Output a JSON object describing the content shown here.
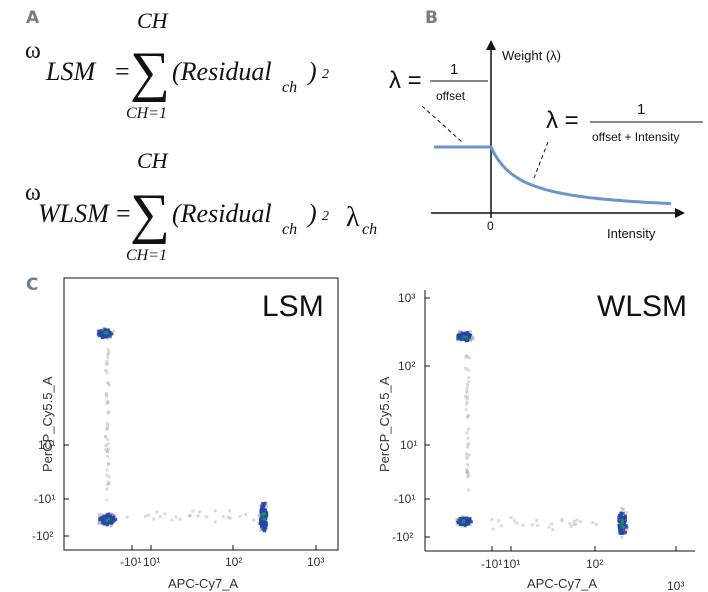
{
  "panels": {
    "a": "A",
    "b": "B",
    "c": "C"
  },
  "equations": {
    "sum_upper": "CH",
    "sum_lower": "CH=1",
    "omega": "ω",
    "lsm_sub": "LSM",
    "wlsm_sub": "WLSM",
    "equals": "=",
    "sigma": "∑",
    "residual_open": "(Residual",
    "ch_sub": "ch",
    "residual_close": ")",
    "squared": "2",
    "lambda": "λ",
    "lambda_ch_sub": "ch"
  },
  "weight_chart": {
    "y_axis_label": "Weight (λ)",
    "x_axis_label": "Intensity",
    "origin_label": "0",
    "formula_left": {
      "lhs": "λ =",
      "numerator": "1",
      "denominator": "offset"
    },
    "formula_right": {
      "lhs": "λ =",
      "numerator": "1",
      "denominator": "offset + Intensity"
    },
    "line_color": "#6a96c8"
  },
  "chart_data": [
    {
      "type": "line",
      "title": "",
      "xlabel": "Intensity",
      "ylabel": "Weight (λ)",
      "series": [
        {
          "name": "",
          "x": [
            -1.0,
            0.0,
            0.5,
            1.0,
            2.0,
            3.0,
            4.0,
            5.0,
            6.0
          ],
          "values": [
            1.0,
            1.0,
            0.67,
            0.5,
            0.33,
            0.25,
            0.2,
            0.17,
            0.14
          ]
        }
      ]
    },
    {
      "type": "scatter",
      "title": "LSM",
      "xlabel": "APC-Cy7_A",
      "ylabel": "PerCP_Cy5.5_A",
      "x_ticks": [
        "-10¹",
        "10¹",
        "10²",
        "10³"
      ],
      "y_ticks": [
        "10¹",
        "-10¹",
        "-10²"
      ],
      "clusters": [
        {
          "x": -20,
          "y": 300,
          "density": "high"
        },
        {
          "x": -20,
          "y": -50,
          "density": "high"
        },
        {
          "x": 250,
          "y": -50,
          "density": "high"
        }
      ]
    },
    {
      "type": "scatter",
      "title": "WLSM",
      "xlabel": "APC-Cy7_A",
      "ylabel": "PerCP_Cy5.5_A",
      "x_ticks": [
        "-10¹",
        "10¹",
        "10²",
        "10³"
      ],
      "y_ticks": [
        "10³",
        "10²",
        "10¹",
        "-10¹",
        "-10²"
      ],
      "clusters": [
        {
          "x": -20,
          "y": 300,
          "density": "high"
        },
        {
          "x": -20,
          "y": -50,
          "density": "high"
        },
        {
          "x": 250,
          "y": -50,
          "density": "high"
        }
      ]
    }
  ],
  "plots": {
    "lsm": {
      "title": "LSM",
      "xlabel": "APC-Cy7_A",
      "ylabel": "PerCP_Cy5.5_A",
      "xticks": {
        "neg10": "-10¹",
        "t10": "10¹",
        "t100": "10²",
        "t1000": "10³"
      },
      "yticks": {
        "t10": "10¹",
        "neg10": "-10¹",
        "neg100": "-10²"
      }
    },
    "wlsm": {
      "title": "WLSM",
      "xlabel": "APC-Cy7_A",
      "ylabel": "PerCP_Cy5.5_A",
      "xticks": {
        "neg10": "-10¹",
        "t10": "10¹",
        "t100": "10²",
        "t1000": "10³"
      },
      "yticks": {
        "t1000": "10³",
        "t100": "10²",
        "t10": "10¹",
        "neg10": "-10¹",
        "neg100": "-10²"
      }
    }
  },
  "colors": {
    "panel_label": "#6b7f91",
    "density_high": "#1a8f5a",
    "density_mid": "#2845a8",
    "density_low": "#b8b8b8"
  }
}
